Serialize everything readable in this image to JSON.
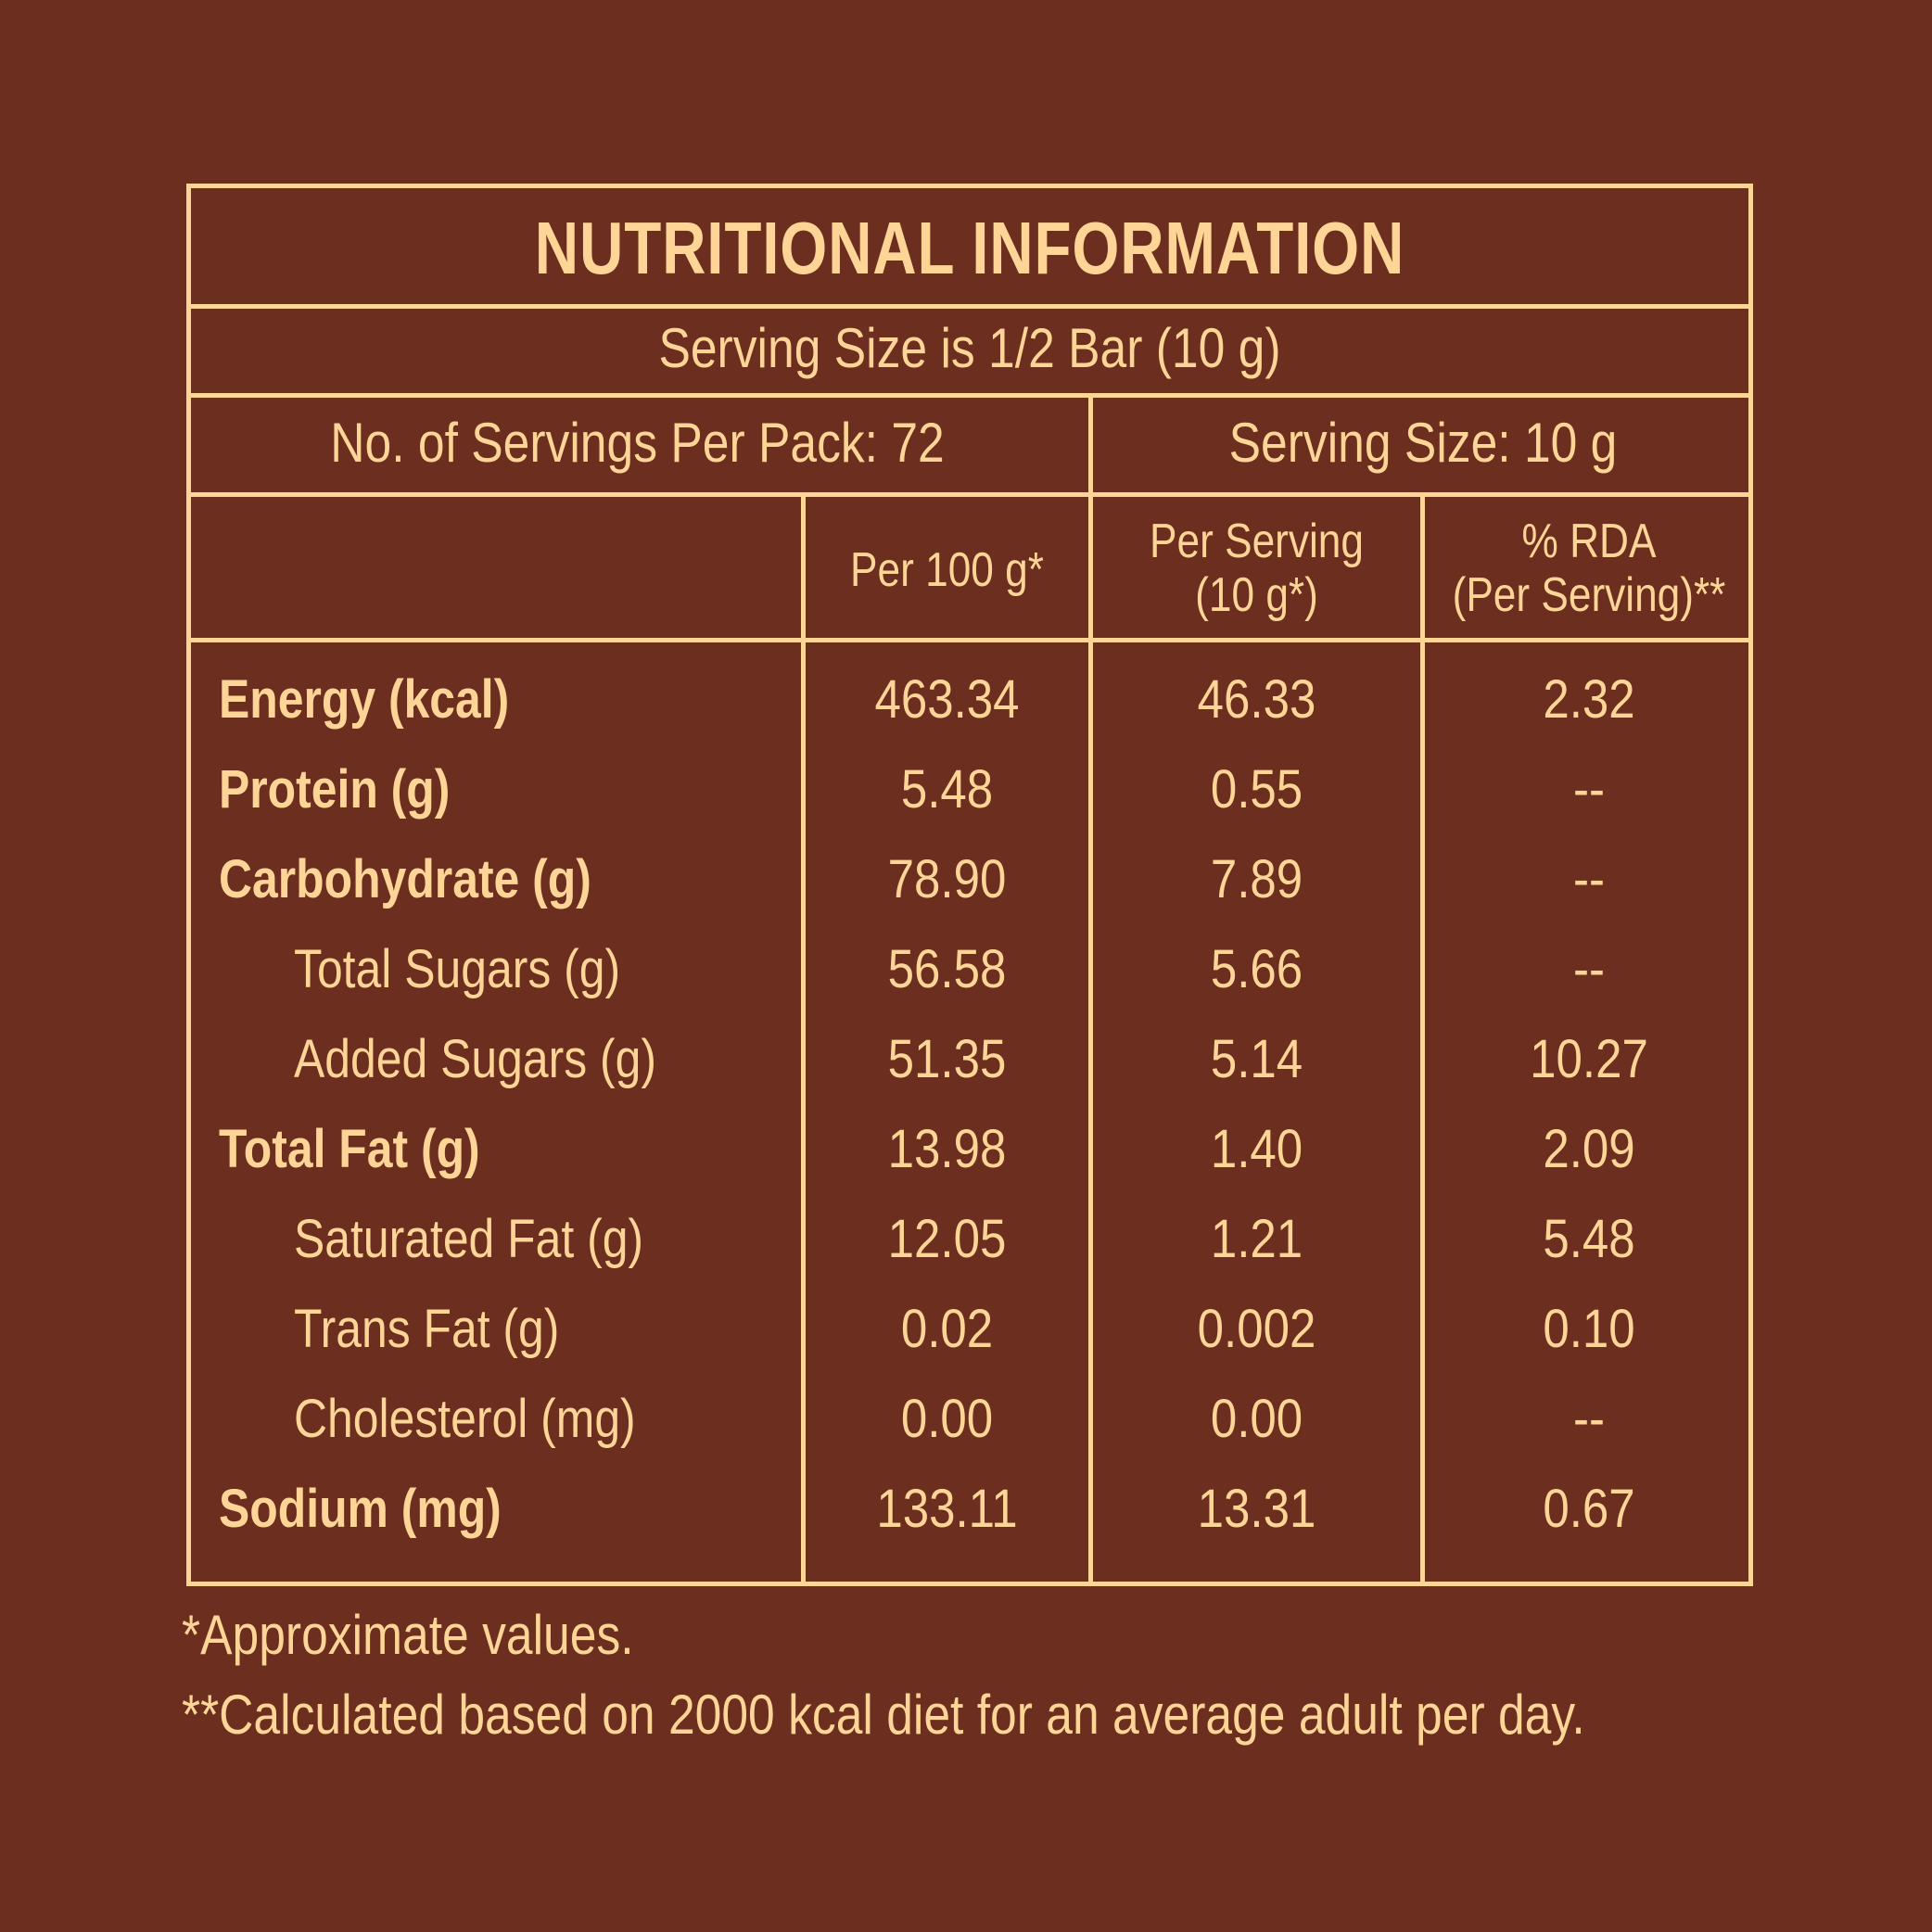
{
  "panel": {
    "title": "NUTRITIONAL INFORMATION",
    "serving_line": "Serving Size is 1/2 Bar (10 g)",
    "servings_per_pack": "No. of Servings Per Pack: 72",
    "serving_size": "Serving Size: 10 g"
  },
  "columns": {
    "per_100g": "Per 100 g*",
    "per_serving_line1": "Per Serving",
    "per_serving_line2": "(10 g*)",
    "rda_line1": "% RDA",
    "rda_line2": "(Per Serving)**"
  },
  "rows": [
    {
      "label": "Energy (kcal)",
      "bold": true,
      "per100": "463.34",
      "serving": "46.33",
      "rda": "2.32"
    },
    {
      "label": "Protein (g)",
      "bold": true,
      "per100": "5.48",
      "serving": "0.55",
      "rda": "--"
    },
    {
      "label": "Carbohydrate (g)",
      "bold": true,
      "per100": "78.90",
      "serving": "7.89",
      "rda": "--"
    },
    {
      "label": "Total Sugars (g)",
      "bold": false,
      "per100": "56.58",
      "serving": "5.66",
      "rda": "--"
    },
    {
      "label": "Added Sugars (g)",
      "bold": false,
      "per100": "51.35",
      "serving": "5.14",
      "rda": "10.27"
    },
    {
      "label": "Total Fat (g)",
      "bold": true,
      "per100": "13.98",
      "serving": "1.40",
      "rda": "2.09"
    },
    {
      "label": "Saturated Fat (g)",
      "bold": false,
      "per100": "12.05",
      "serving": "1.21",
      "rda": "5.48"
    },
    {
      "label": "Trans Fat (g)",
      "bold": false,
      "per100": "0.02",
      "serving": "0.002",
      "rda": "0.10"
    },
    {
      "label": "Cholesterol (mg)",
      "bold": false,
      "per100": "0.00",
      "serving": "0.00",
      "rda": "--"
    },
    {
      "label": "Sodium (mg)",
      "bold": true,
      "per100": "133.11",
      "serving": "13.31",
      "rda": "0.67"
    }
  ],
  "footnotes": {
    "note1": "*Approximate values.",
    "note2": "**Calculated based on 2000 kcal diet for an average adult per day."
  },
  "colors": {
    "background": "#6b2e1f",
    "text_and_lines": "#ffd597"
  }
}
